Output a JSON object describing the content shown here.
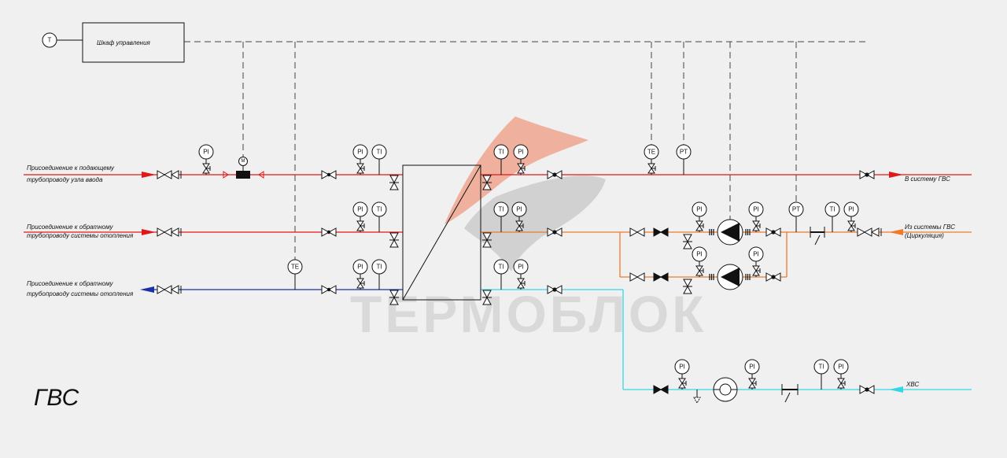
{
  "title": "ГВС",
  "watermark": "ТЕРМОБЛОК",
  "control_cabinet": "Шкаф управления",
  "thermostat_symbol": "T",
  "motor_symbol": "М",
  "colors": {
    "supply": "#e01818",
    "return_heating": "#e01818",
    "return_blue": "#1a2fa8",
    "hot_water": "#f07a2a",
    "cold_water": "#33d6e6",
    "signal": "#444444"
  },
  "labels": {
    "supply_in_1": "Присоединение к подающему",
    "supply_in_2": "трубопроводу узла ввода",
    "return_in_1": "Присоединение к обратному",
    "return_in_2": "трубопроводу системы отопления",
    "return_out_1": "Присоединение к обратному",
    "return_out_2": "трубопроводу системы отопления",
    "gvs_out": "В систему ГВС",
    "gvs_circ_1": "Из системы ГВС",
    "gvs_circ_2": "(Циркуляция)",
    "cold": "ХВС"
  },
  "instruments": {
    "pi": "PI",
    "ti": "TI",
    "te": "TE",
    "pt": "PT"
  }
}
